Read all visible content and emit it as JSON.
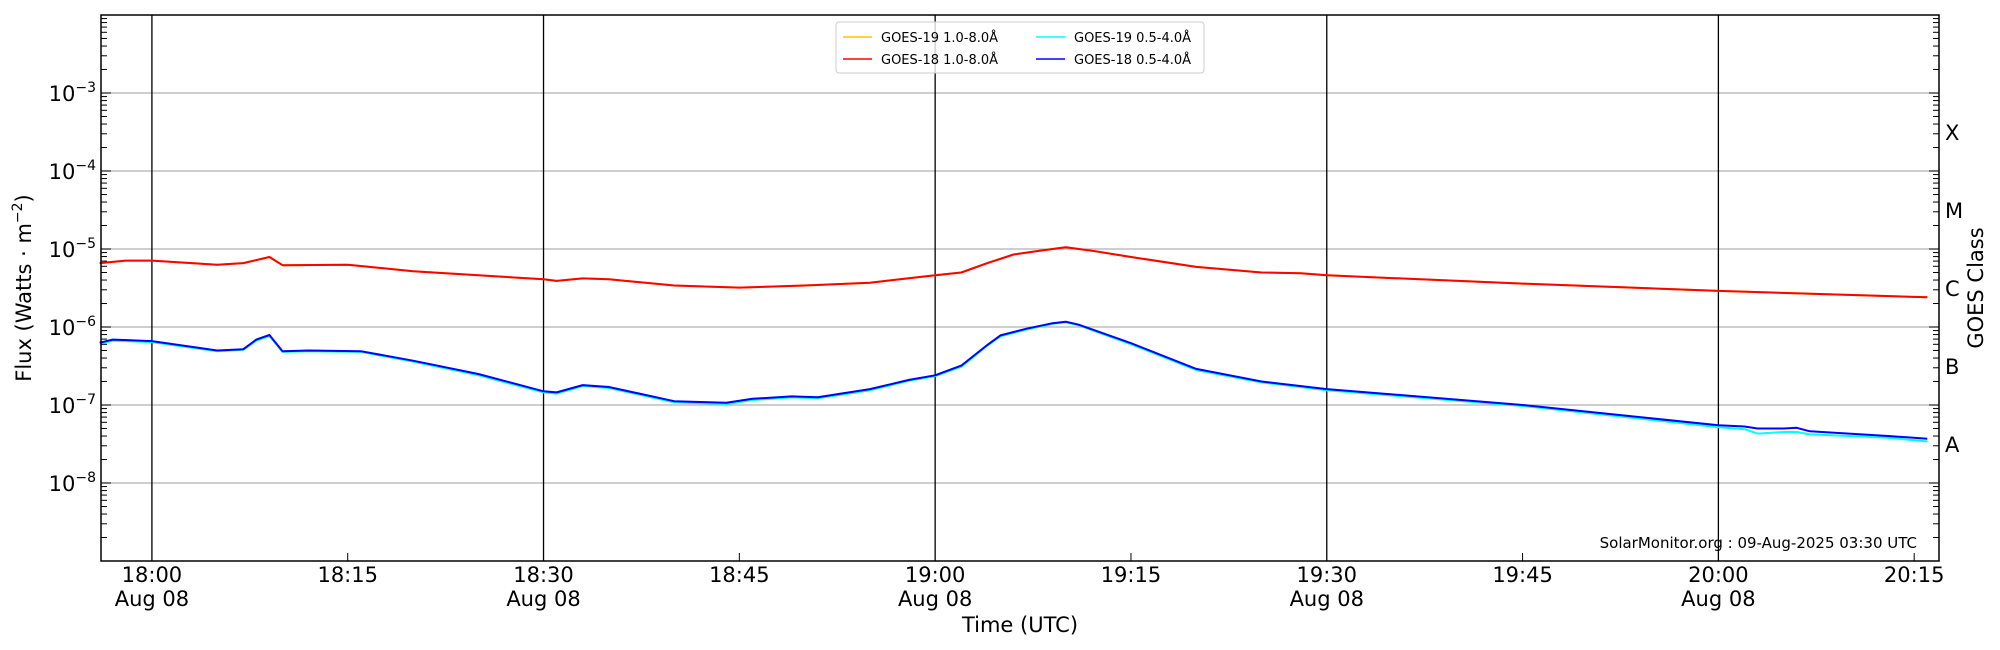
{
  "chart_data": {
    "type": "line",
    "title": "",
    "xlabel": "Time (UTC)",
    "ylabel": {
      "main": "Flux (Watts · m",
      "exp": "−2",
      "close": ")"
    },
    "y2label": "GOES Class",
    "yscale": "log",
    "ylim": [
      1e-09,
      0.01
    ],
    "xlim": [
      "17:56",
      "20:17"
    ],
    "grid": "horizontal gray at decades, vertical black every 30 min",
    "legend_placement": "top-center",
    "ytick_labels": [
      {
        "value": 0.001,
        "base": "10",
        "exp": "−3"
      },
      {
        "value": 0.0001,
        "base": "10",
        "exp": "−4"
      },
      {
        "value": 1e-05,
        "base": "10",
        "exp": "−5"
      },
      {
        "value": 1e-06,
        "base": "10",
        "exp": "−6"
      },
      {
        "value": 1e-07,
        "base": "10",
        "exp": "−7"
      },
      {
        "value": 1e-08,
        "base": "10",
        "exp": "−8"
      }
    ],
    "xtick_labels": [
      {
        "time": "18:00",
        "label": "18:00",
        "date": "Aug 08"
      },
      {
        "time": "18:15",
        "label": "18:15",
        "date": ""
      },
      {
        "time": "18:30",
        "label": "18:30",
        "date": "Aug 08"
      },
      {
        "time": "18:45",
        "label": "18:45",
        "date": ""
      },
      {
        "time": "19:00",
        "label": "19:00",
        "date": "Aug 08"
      },
      {
        "time": "19:15",
        "label": "19:15",
        "date": ""
      },
      {
        "time": "19:30",
        "label": "19:30",
        "date": "Aug 08"
      },
      {
        "time": "19:45",
        "label": "19:45",
        "date": ""
      },
      {
        "time": "20:00",
        "label": "20:00",
        "date": "Aug 08"
      },
      {
        "time": "20:15",
        "label": "20:15",
        "date": ""
      }
    ],
    "goes_classes": [
      {
        "label": "X",
        "low": 0.0001
      },
      {
        "label": "M",
        "low": 1e-05
      },
      {
        "label": "C",
        "low": 1e-06
      },
      {
        "label": "B",
        "low": 1e-07
      },
      {
        "label": "A",
        "low": 1e-08
      }
    ],
    "series": [
      {
        "name": "GOES-19 1.0-8.0Å",
        "color": "#ffc400",
        "x": [
          "17:56",
          "17:58",
          "18:00",
          "18:05",
          "18:07",
          "18:09",
          "18:10",
          "18:15",
          "18:20",
          "18:25",
          "18:30",
          "18:31",
          "18:33",
          "18:35",
          "18:40",
          "18:45",
          "18:50",
          "18:55",
          "19:00",
          "19:02",
          "19:04",
          "19:06",
          "19:08",
          "19:10",
          "19:12",
          "19:15",
          "19:20",
          "19:25",
          "19:28",
          "19:30",
          "19:45",
          "20:00",
          "20:16"
        ],
        "y": [
          6.6e-06,
          7.1e-06,
          7.1e-06,
          6.3e-06,
          6.6e-06,
          7.9e-06,
          6.2e-06,
          6.3e-06,
          5.2e-06,
          4.6e-06,
          4.1e-06,
          3.9e-06,
          4.2e-06,
          4.1e-06,
          3.4e-06,
          3.2e-06,
          3.4e-06,
          3.7e-06,
          4.6e-06,
          5e-06,
          6.6e-06,
          8.5e-06,
          9.5e-06,
          1.05e-05,
          9.5e-06,
          7.9e-06,
          5.9e-06,
          5e-06,
          4.9e-06,
          4.6e-06,
          3.6e-06,
          2.9e-06,
          2.4e-06
        ]
      },
      {
        "name": "GOES-18 1.0-8.0Å",
        "color": "#ff0000",
        "x": [
          "17:56",
          "17:58",
          "18:00",
          "18:05",
          "18:07",
          "18:09",
          "18:10",
          "18:15",
          "18:20",
          "18:25",
          "18:30",
          "18:31",
          "18:33",
          "18:35",
          "18:40",
          "18:45",
          "18:50",
          "18:55",
          "19:00",
          "19:02",
          "19:04",
          "19:06",
          "19:08",
          "19:10",
          "19:12",
          "19:15",
          "19:20",
          "19:25",
          "19:28",
          "19:30",
          "19:45",
          "20:00",
          "20:16"
        ],
        "y": [
          6.6e-06,
          7.1e-06,
          7.1e-06,
          6.3e-06,
          6.6e-06,
          7.9e-06,
          6.2e-06,
          6.3e-06,
          5.2e-06,
          4.6e-06,
          4.1e-06,
          3.9e-06,
          4.2e-06,
          4.1e-06,
          3.4e-06,
          3.2e-06,
          3.4e-06,
          3.7e-06,
          4.6e-06,
          5e-06,
          6.6e-06,
          8.5e-06,
          9.5e-06,
          1.05e-05,
          9.5e-06,
          7.9e-06,
          5.9e-06,
          5e-06,
          4.9e-06,
          4.6e-06,
          3.6e-06,
          2.9e-06,
          2.4e-06
        ]
      },
      {
        "name": "GOES-19 0.5-4.0Å",
        "color": "#00ffff",
        "x": [
          "17:56",
          "17:57",
          "18:00",
          "18:05",
          "18:07",
          "18:08",
          "18:09",
          "18:10",
          "18:12",
          "18:16",
          "18:20",
          "18:25",
          "18:30",
          "18:31",
          "18:33",
          "18:35",
          "18:40",
          "18:44",
          "18:46",
          "18:49",
          "18:51",
          "18:55",
          "18:58",
          "19:00",
          "19:02",
          "19:04",
          "19:05",
          "19:07",
          "19:09",
          "19:10",
          "19:11",
          "19:15",
          "19:20",
          "19:25",
          "19:30",
          "19:45",
          "20:00",
          "20:02",
          "20:03",
          "20:05",
          "20:06",
          "20:07",
          "20:10",
          "20:13",
          "20:16"
        ],
        "y": [
          6.1e-07,
          6.7e-07,
          6.4e-07,
          4.9e-07,
          5.1e-07,
          6.7e-07,
          7.7e-07,
          4.8e-07,
          4.9e-07,
          4.8e-07,
          3.6e-07,
          2.4e-07,
          1.45e-07,
          1.4e-07,
          1.75e-07,
          1.65e-07,
          1.08e-07,
          1.03e-07,
          1.16e-07,
          1.25e-07,
          1.22e-07,
          1.55e-07,
          2.05e-07,
          2.35e-07,
          3.1e-07,
          5.8e-07,
          7.6e-07,
          9.3e-07,
          1.1e-06,
          1.15e-06,
          1.05e-06,
          6e-07,
          2.8e-07,
          1.95e-07,
          1.55e-07,
          9.7e-08,
          5.2e-08,
          4.9e-08,
          4.3e-08,
          4.5e-08,
          4.5e-08,
          4.2e-08,
          4e-08,
          3.8e-08,
          3.4e-08
        ]
      },
      {
        "name": "GOES-18 0.5-4.0Å",
        "color": "#0000ff",
        "x": [
          "17:56",
          "17:57",
          "18:00",
          "18:05",
          "18:07",
          "18:08",
          "18:09",
          "18:10",
          "18:12",
          "18:16",
          "18:20",
          "18:25",
          "18:30",
          "18:31",
          "18:33",
          "18:35",
          "18:40",
          "18:44",
          "18:46",
          "18:49",
          "18:51",
          "18:55",
          "18:58",
          "19:00",
          "19:02",
          "19:04",
          "19:05",
          "19:07",
          "19:09",
          "19:10",
          "19:11",
          "19:15",
          "19:20",
          "19:25",
          "19:30",
          "19:45",
          "20:00",
          "20:02",
          "20:03",
          "20:05",
          "20:06",
          "20:07",
          "20:10",
          "20:13",
          "20:16"
        ],
        "y": [
          6.3e-07,
          6.9e-07,
          6.6e-07,
          5e-07,
          5.2e-07,
          6.9e-07,
          7.9e-07,
          4.9e-07,
          5e-07,
          4.9e-07,
          3.7e-07,
          2.5e-07,
          1.5e-07,
          1.45e-07,
          1.8e-07,
          1.7e-07,
          1.12e-07,
          1.07e-07,
          1.2e-07,
          1.29e-07,
          1.26e-07,
          1.6e-07,
          2.1e-07,
          2.4e-07,
          3.2e-07,
          5.9e-07,
          7.8e-07,
          9.5e-07,
          1.12e-06,
          1.17e-06,
          1.07e-06,
          6.2e-07,
          2.9e-07,
          2e-07,
          1.6e-07,
          1e-07,
          5.5e-08,
          5.3e-08,
          5e-08,
          5e-08,
          5.1e-08,
          4.6e-08,
          4.3e-08,
          4e-08,
          3.7e-08
        ]
      }
    ],
    "annotation": "SolarMonitor.org : 09-Aug-2025 03:30 UTC"
  }
}
